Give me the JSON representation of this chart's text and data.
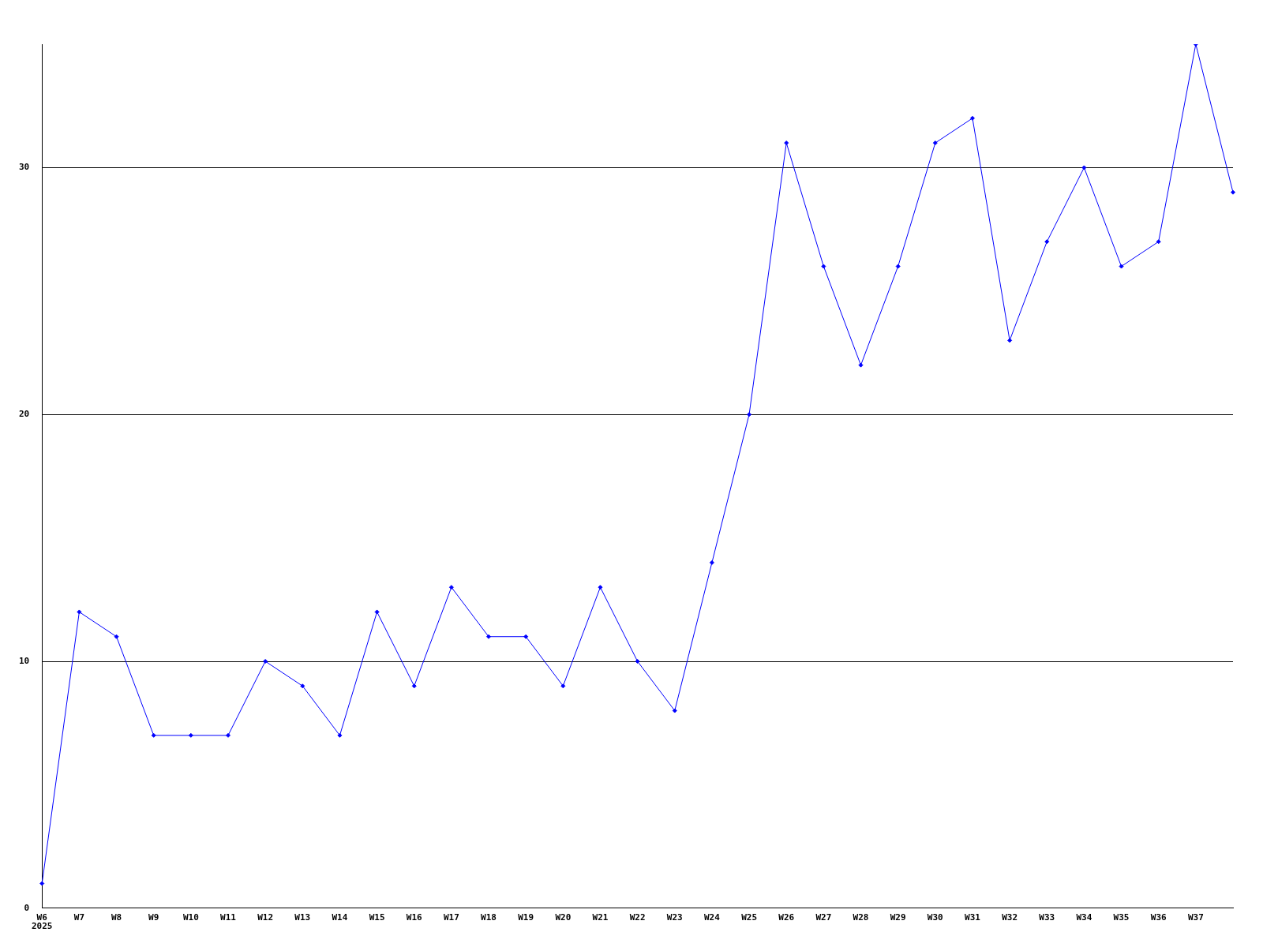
{
  "chart_data": {
    "type": "line",
    "categories": [
      "W6",
      "W7",
      "W8",
      "W9",
      "W10",
      "W11",
      "W12",
      "W13",
      "W14",
      "W15",
      "W16",
      "W17",
      "W18",
      "W19",
      "W20",
      "W21",
      "W22",
      "W23",
      "W24",
      "W25",
      "W26",
      "W27",
      "W28",
      "W29",
      "W30",
      "W31",
      "W32",
      "W33",
      "W34",
      "W35",
      "W36",
      "W37",
      null
    ],
    "series": [
      {
        "color": "#0000ff",
        "values": [
          1,
          12,
          11,
          7,
          7,
          7,
          10,
          9,
          7,
          12,
          9,
          13,
          11,
          11,
          9,
          13,
          10,
          8,
          14,
          20,
          31,
          26,
          22,
          26,
          31,
          32,
          23,
          27,
          30,
          26,
          27,
          35,
          29
        ]
      }
    ],
    "ylim": [
      0,
      35
    ],
    "yticks": [
      0,
      10,
      20,
      30
    ],
    "grid": "y",
    "legend": false,
    "marker": "diamond",
    "line_style": "solid",
    "annotations": [
      "2025"
    ]
  }
}
